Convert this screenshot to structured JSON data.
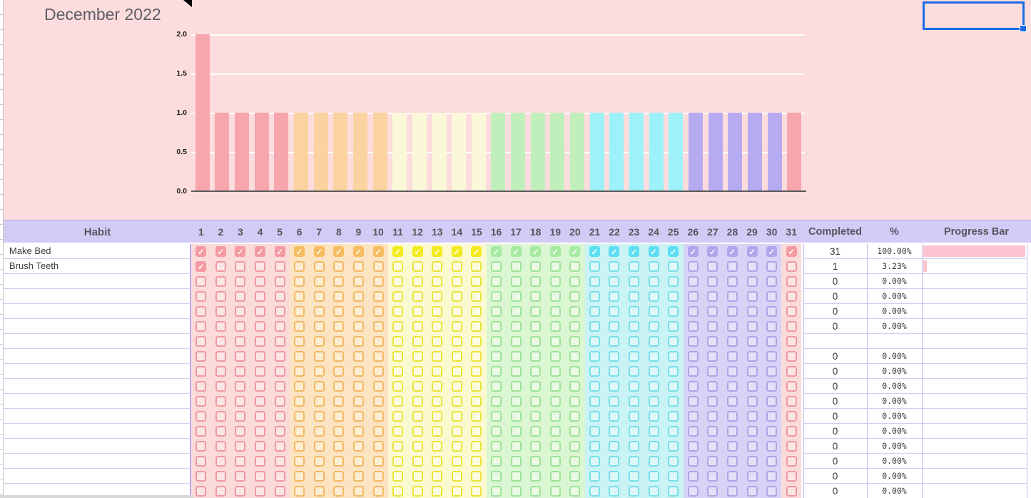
{
  "title": "December 2022",
  "icons": {
    "check_glyph": "✓",
    "cursor": "arrow-cursor"
  },
  "chart_data": {
    "type": "bar",
    "title": "",
    "xlabel": "",
    "ylabel": "",
    "x": [
      1,
      2,
      3,
      4,
      5,
      6,
      7,
      8,
      9,
      10,
      11,
      12,
      13,
      14,
      15,
      16,
      17,
      18,
      19,
      20,
      21,
      22,
      23,
      24,
      25,
      26,
      27,
      28,
      29,
      30,
      31
    ],
    "values": [
      2,
      1,
      1,
      1,
      1,
      1,
      1,
      1,
      1,
      1,
      1,
      1,
      1,
      1,
      1,
      1,
      1,
      1,
      1,
      1,
      1,
      1,
      1,
      1,
      1,
      1,
      1,
      1,
      1,
      1,
      1
    ],
    "ylim": [
      0,
      2.0
    ],
    "yticks": [
      "2.0",
      "1.5",
      "1.0",
      "0.5",
      "0.0"
    ],
    "gridlines": true,
    "legend": "none"
  },
  "table": {
    "headers": {
      "habit": "Habit",
      "days": [
        "1",
        "2",
        "3",
        "4",
        "5",
        "6",
        "7",
        "8",
        "9",
        "10",
        "11",
        "12",
        "13",
        "14",
        "15",
        "16",
        "17",
        "18",
        "19",
        "20",
        "21",
        "22",
        "23",
        "24",
        "25",
        "26",
        "27",
        "28",
        "29",
        "30",
        "31"
      ],
      "completed": "Completed",
      "percent": "%",
      "progress": "Progress Bar"
    },
    "rows": [
      {
        "habit": "Make Bed",
        "checked_count": 31,
        "completed": "31",
        "percent": "100.00%"
      },
      {
        "habit": "Brush Teeth",
        "checked_count": 1,
        "completed": "1",
        "percent": "3.23%"
      },
      {
        "habit": "",
        "checked_count": 0,
        "completed": "0",
        "percent": "0.00%"
      },
      {
        "habit": "",
        "checked_count": 0,
        "completed": "0",
        "percent": "0.00%"
      },
      {
        "habit": "",
        "checked_count": 0,
        "completed": "0",
        "percent": "0.00%"
      },
      {
        "habit": "",
        "checked_count": 0,
        "completed": "0",
        "percent": "0.00%"
      },
      {
        "habit": "",
        "checked_count": 0,
        "completed": "",
        "percent": ""
      },
      {
        "habit": "",
        "checked_count": 0,
        "completed": "0",
        "percent": "0.00%"
      },
      {
        "habit": "",
        "checked_count": 0,
        "completed": "0",
        "percent": "0.00%"
      },
      {
        "habit": "",
        "checked_count": 0,
        "completed": "0",
        "percent": "0.00%"
      },
      {
        "habit": "",
        "checked_count": 0,
        "completed": "0",
        "percent": "0.00%"
      },
      {
        "habit": "",
        "checked_count": 0,
        "completed": "0",
        "percent": "0.00%"
      },
      {
        "habit": "",
        "checked_count": 0,
        "completed": "0",
        "percent": "0.00%"
      },
      {
        "habit": "",
        "checked_count": 0,
        "completed": "0",
        "percent": "0.00%"
      },
      {
        "habit": "",
        "checked_count": 0,
        "completed": "0",
        "percent": "0.00%"
      },
      {
        "habit": "",
        "checked_count": 0,
        "completed": "0",
        "percent": "0.00%"
      },
      {
        "habit": "",
        "checked_count": 0,
        "completed": "0",
        "percent": "0.00%"
      }
    ]
  },
  "palette": {
    "sheet_background": "#fcdcdc",
    "header_bg": "#d3cbf6",
    "header_text": "#56565e",
    "row_border": "#d5ccf5",
    "col_border": "#c3b9f0",
    "strong_border": "#b7abee",
    "progress_fill": "#fbc2cf",
    "selection_blue": "#1b6ce6",
    "axis_line": "#5a5a5a",
    "groups": [
      {
        "days": [
          1,
          5
        ],
        "bar": "#f7a6ae",
        "check_fill": "#f59aa2",
        "box_border": "#f0989f",
        "band_bg": "#fbdada",
        "box_bg": "#fce5e5"
      },
      {
        "days": [
          6,
          10
        ],
        "bar": "#fbd3a0",
        "check_fill": "#f8bd60",
        "box_border": "#f3b863",
        "band_bg": "#fce3c2",
        "box_bg": "#fdedd3"
      },
      {
        "days": [
          11,
          15
        ],
        "bar": "#fbf8d9",
        "check_fill": "#f3eb1d",
        "box_border": "#eae43a",
        "band_bg": "#fbf9d0",
        "box_bg": "#fdfce2"
      },
      {
        "days": [
          16,
          20
        ],
        "bar": "#c1efbc",
        "check_fill": "#a6eba1",
        "box_border": "#9ee39a",
        "band_bg": "#daf6d2",
        "box_bg": "#eafae4"
      },
      {
        "days": [
          21,
          25
        ],
        "bar": "#9cf2f8",
        "check_fill": "#5edef2",
        "box_border": "#77dfe9",
        "band_bg": "#caf3f6",
        "box_bg": "#def8fa"
      },
      {
        "days": [
          26,
          30
        ],
        "bar": "#b6abf1",
        "check_fill": "#b1a6ec",
        "box_border": "#afa4e6",
        "band_bg": "#d9d2f7",
        "box_bg": "#e5dff9"
      },
      {
        "days": [
          31,
          31
        ],
        "bar": "#f7a6ae",
        "check_fill": "#f59aa2",
        "box_border": "#f0989f",
        "band_bg": "#fbdada",
        "box_bg": "#fce5e5"
      }
    ]
  }
}
